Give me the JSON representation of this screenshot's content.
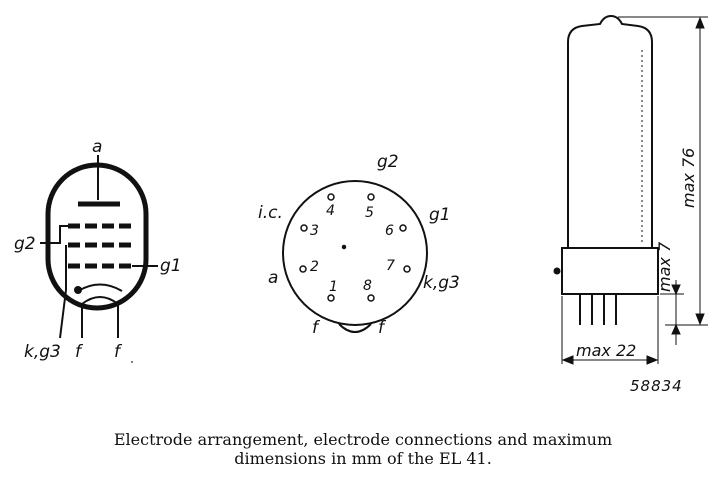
{
  "symbol": {
    "anode": "a",
    "grid2": "g2",
    "grid1": "g1",
    "cathode": "k,g3",
    "filament_left": "f",
    "filament_right": "f"
  },
  "base": {
    "top_label": "g2",
    "ic_label": "i.c.",
    "g1_label": "g1",
    "a_label": "a",
    "kg3_label": "k,g3",
    "f_left_label": "f",
    "f_right_label": "f",
    "pins": [
      "1",
      "2",
      "3",
      "4",
      "5",
      "6",
      "7",
      "8"
    ]
  },
  "outline": {
    "height_label": "max 76",
    "base_label": "max 7",
    "width_label": "max 22",
    "reference": "58834"
  },
  "caption": {
    "line1": "Electrode arrangement, electrode connections and maximum",
    "line2": "dimensions in mm of the EL 41."
  }
}
